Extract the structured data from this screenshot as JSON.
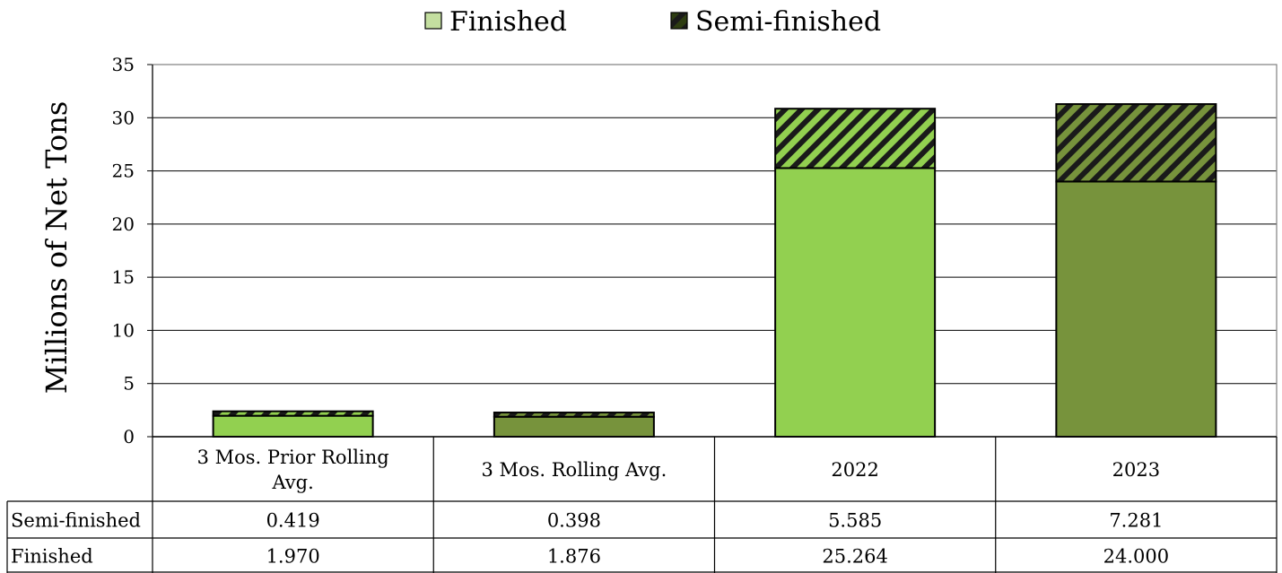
{
  "chart_data": {
    "type": "bar",
    "stacked": true,
    "ylabel": "Millions of Net Tons",
    "ylim": [
      0,
      35
    ],
    "yticks": [
      0,
      5,
      10,
      15,
      20,
      25,
      30,
      35
    ],
    "grid": true,
    "legend_position": "top-center",
    "categories": [
      [
        "3 Mos. Prior Rolling",
        "Avg."
      ],
      [
        "3 Mos. Rolling Avg."
      ],
      [
        "2022"
      ],
      [
        "2023"
      ]
    ],
    "series": [
      {
        "name": "Semi-finished",
        "values": [
          0.419,
          0.398,
          5.585,
          7.281
        ],
        "display": [
          "0.419",
          "0.398",
          "5.585",
          "7.281"
        ]
      },
      {
        "name": "Finished",
        "values": [
          1.97,
          1.876,
          25.264,
          24.0
        ],
        "display": [
          "1.970",
          "1.876",
          "25.264",
          "24.000"
        ]
      }
    ],
    "legend": [
      {
        "label": "Finished",
        "color": "#c4dfa0",
        "pattern": "solid"
      },
      {
        "label": "Semi-finished",
        "color": "#3d5218",
        "pattern": "hatched"
      }
    ],
    "bar_colors": [
      "#92d050",
      "#77933c",
      "#92d050",
      "#77933c"
    ]
  }
}
